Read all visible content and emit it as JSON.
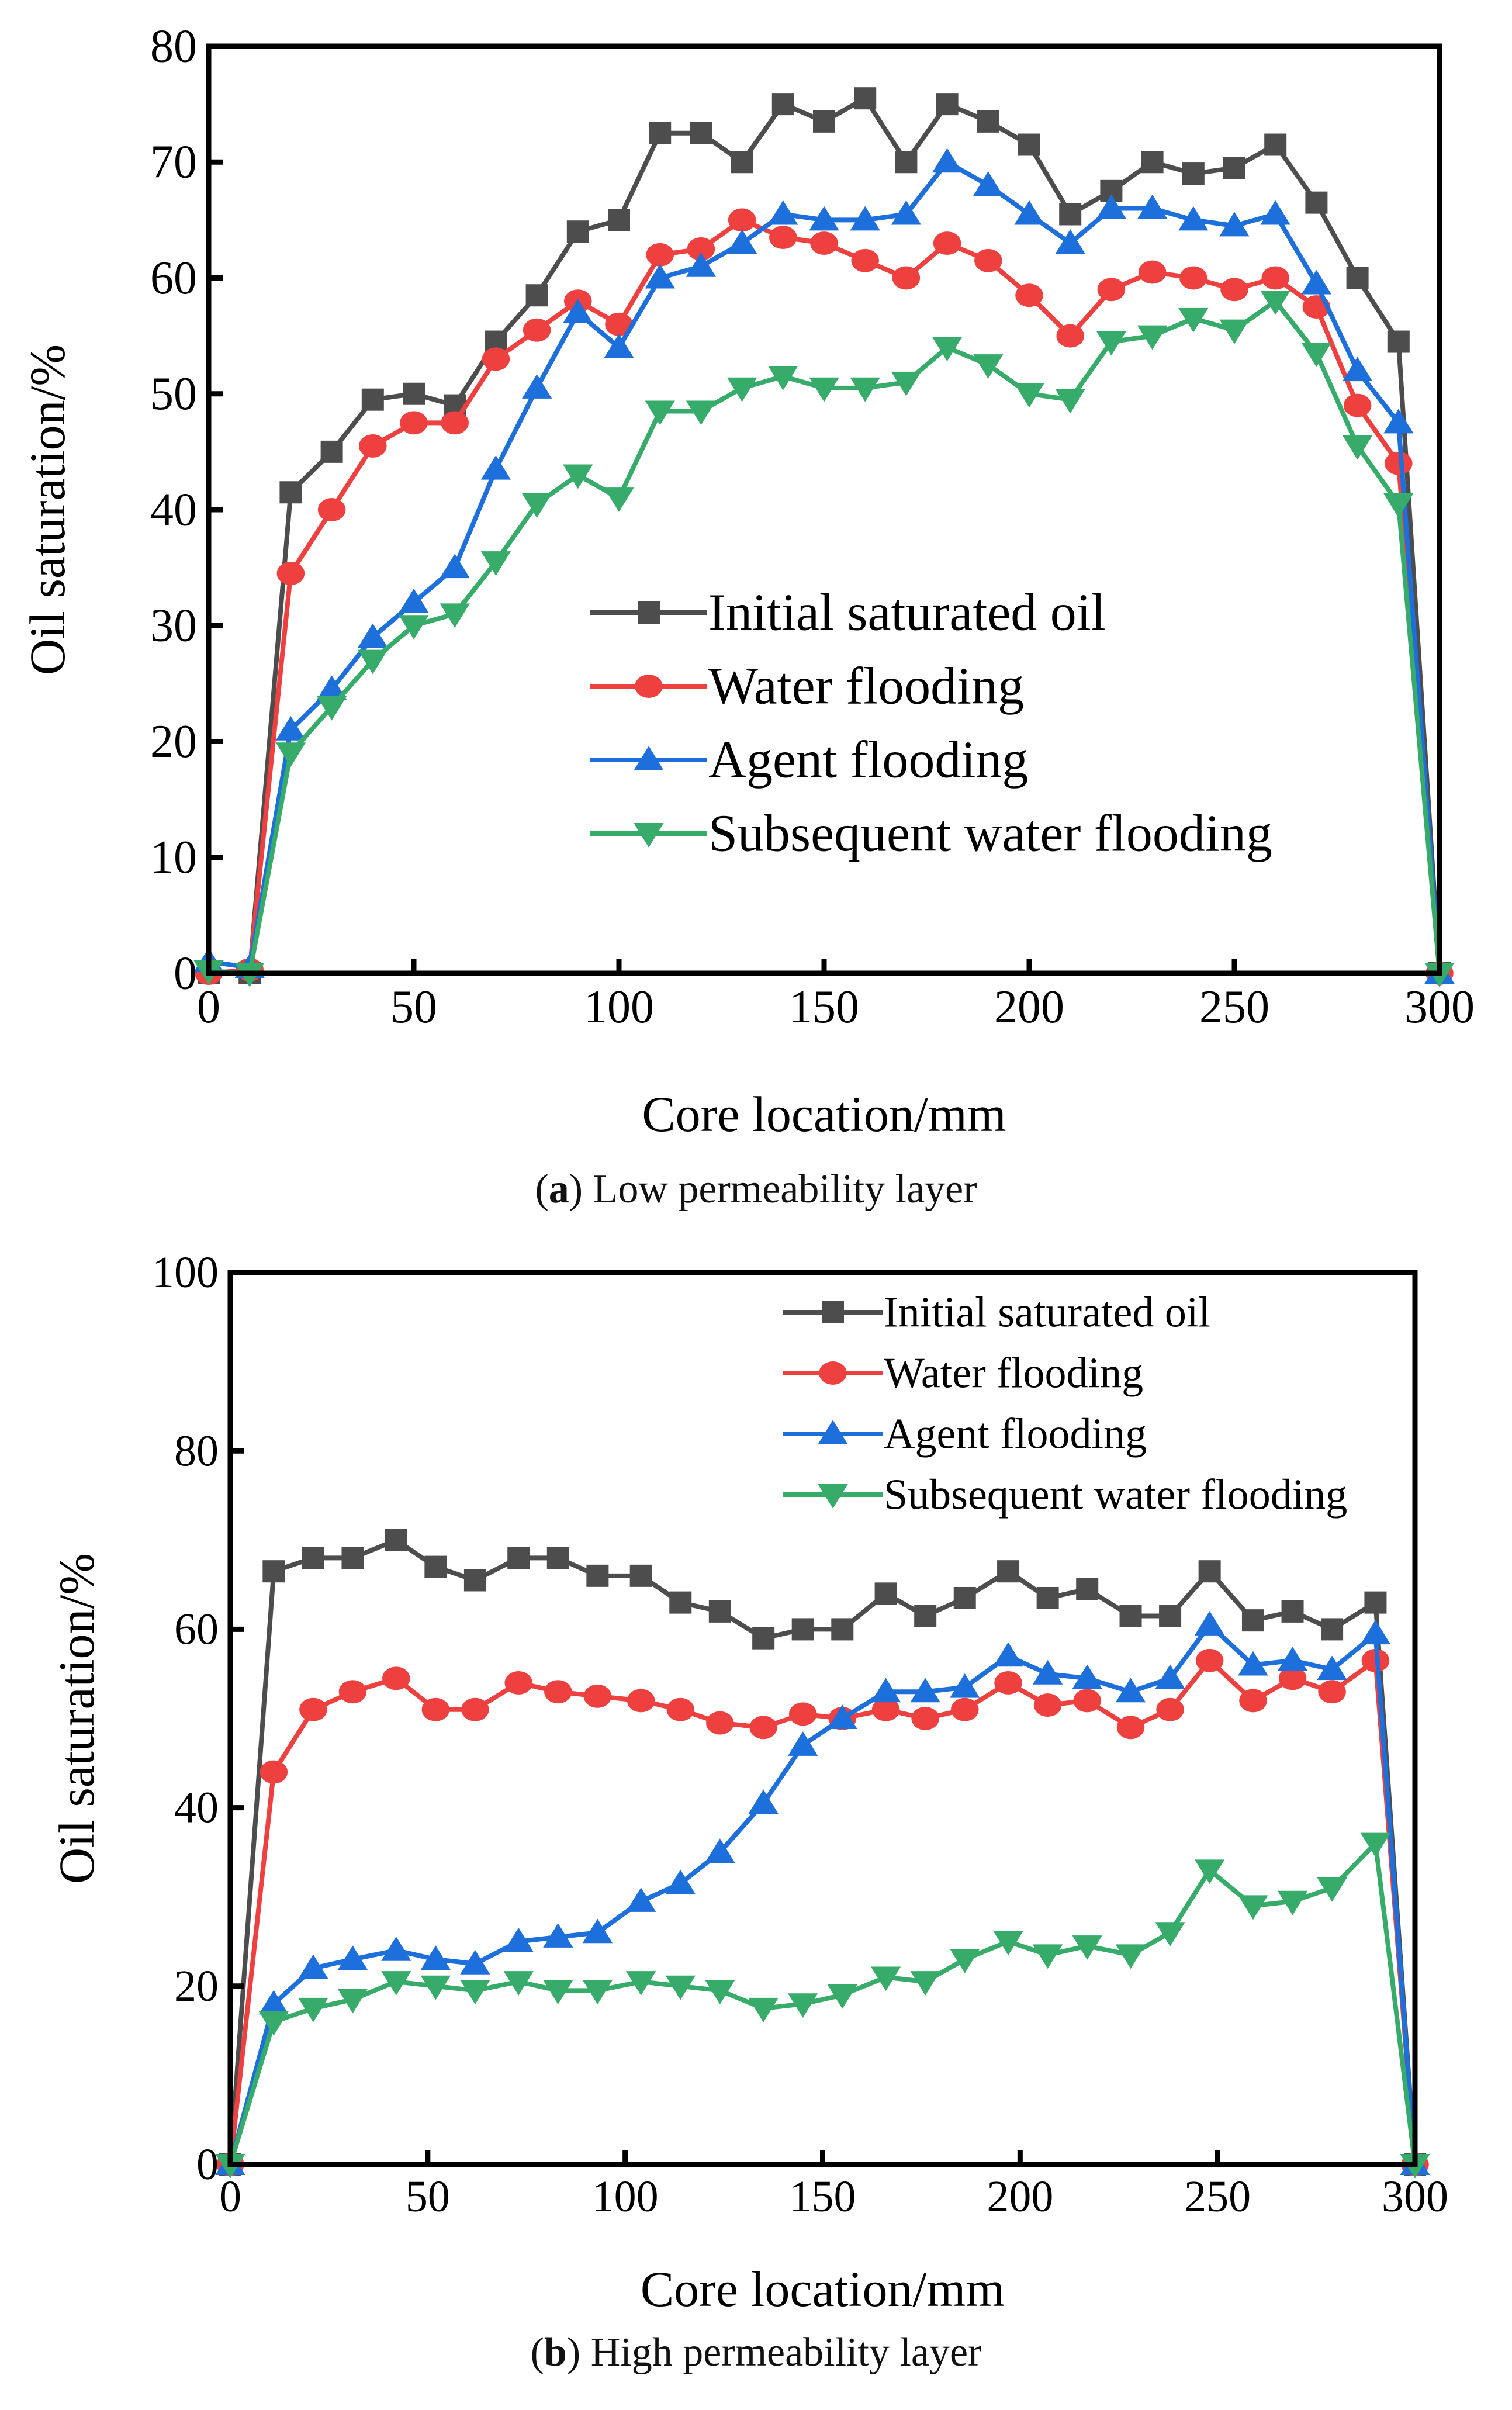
{
  "chart_data": [
    {
      "type": "line",
      "caption_label": "a",
      "caption_text": "Low permeability layer",
      "xlabel": "Core location/mm",
      "ylabel": "Oil saturation/%",
      "xlim": [
        0,
        300
      ],
      "ylim": [
        0,
        80
      ],
      "xticks": [
        0,
        50,
        100,
        150,
        200,
        250,
        300
      ],
      "yticks": [
        0,
        10,
        20,
        30,
        40,
        50,
        60,
        70,
        80
      ],
      "legend_position": "center-right",
      "x": [
        0,
        10,
        20,
        30,
        40,
        50,
        60,
        70,
        80,
        90,
        100,
        110,
        120,
        130,
        140,
        150,
        160,
        170,
        180,
        190,
        200,
        210,
        220,
        230,
        240,
        250,
        260,
        270,
        280,
        290,
        300
      ],
      "series": [
        {
          "name": "Initial saturated oil",
          "marker": "square",
          "color": "#4d4d4d",
          "values": [
            0,
            0,
            41.5,
            45,
            49.5,
            50,
            49,
            54.5,
            58.5,
            64,
            65,
            72.5,
            72.5,
            70,
            75,
            73.5,
            75.5,
            70,
            75,
            73.5,
            71.5,
            65.5,
            67.5,
            70,
            69,
            69.5,
            71.5,
            66.5,
            60,
            54.5,
            0
          ]
        },
        {
          "name": "Water flooding",
          "marker": "circle",
          "color": "#ef4040",
          "values": [
            0,
            0.3,
            34.5,
            40,
            45.5,
            47.5,
            47.5,
            53,
            55.5,
            58,
            56,
            62,
            62.5,
            65,
            63.5,
            63,
            61.5,
            60,
            63,
            61.5,
            58.5,
            55,
            59,
            60.5,
            60,
            59,
            60,
            57.5,
            49,
            44,
            0
          ]
        },
        {
          "name": "Agent flooding",
          "marker": "triangle-up",
          "color": "#1d6fdc",
          "values": [
            1,
            0.5,
            21,
            24.5,
            29,
            32,
            35,
            43.5,
            50.5,
            57,
            54,
            60,
            61,
            63,
            65.5,
            65,
            65,
            65.5,
            70,
            68,
            65.5,
            63,
            66,
            66,
            65,
            64.5,
            65.5,
            59.5,
            52,
            47.5,
            0
          ]
        },
        {
          "name": "Subsequent water flooding",
          "marker": "triangle-down",
          "color": "#37ab69",
          "values": [
            0.2,
            0,
            19,
            23,
            27,
            30,
            31,
            35.5,
            40.5,
            43,
            41,
            48.5,
            48.5,
            50.5,
            51.5,
            50.5,
            50.5,
            51,
            54,
            52.5,
            50,
            49.5,
            54.5,
            55,
            56.5,
            55.5,
            58,
            53.5,
            45.5,
            40.5,
            0
          ]
        }
      ]
    },
    {
      "type": "line",
      "caption_label": "b",
      "caption_text": "High permeability layer",
      "xlabel": "Core location/mm",
      "ylabel": "Oil saturation/%",
      "xlim": [
        0,
        300
      ],
      "ylim": [
        0,
        100
      ],
      "xticks": [
        0,
        50,
        100,
        150,
        200,
        250,
        300
      ],
      "yticks": [
        0,
        20,
        40,
        60,
        80,
        100
      ],
      "legend_position": "top-right",
      "x": [
        0,
        11,
        21,
        31,
        42,
        52,
        62,
        73,
        83,
        93,
        104,
        114,
        124,
        135,
        145,
        155,
        166,
        176,
        186,
        197,
        207,
        217,
        228,
        238,
        248,
        259,
        269,
        279,
        290,
        300
      ],
      "series": [
        {
          "name": "Initial saturated oil",
          "marker": "square",
          "color": "#4d4d4d",
          "values": [
            0,
            66.5,
            68,
            68,
            70,
            67,
            65.5,
            68,
            68,
            66,
            66,
            63,
            62,
            59,
            60,
            60,
            64,
            61.5,
            63.5,
            66.5,
            63.5,
            64.5,
            61.5,
            61.5,
            66.5,
            61,
            62,
            60,
            63,
            0
          ]
        },
        {
          "name": "Water flooding",
          "marker": "circle",
          "color": "#ef4040",
          "values": [
            0,
            44,
            51,
            53,
            54.5,
            51,
            51,
            54,
            53,
            52.5,
            52,
            51,
            49.5,
            49,
            50.5,
            50,
            51,
            50,
            51,
            54,
            51.5,
            52,
            49,
            51,
            56.5,
            52,
            54.5,
            53,
            56.5,
            0
          ]
        },
        {
          "name": "Agent flooding",
          "marker": "triangle-up",
          "color": "#1d6fdc",
          "values": [
            0,
            18,
            22,
            23,
            24,
            23,
            22.5,
            25,
            25.5,
            26,
            29.5,
            31.5,
            35,
            40.5,
            47,
            50,
            53,
            53,
            53.5,
            57,
            55,
            54.5,
            53,
            54.5,
            60.5,
            56,
            56.5,
            55.5,
            59.5,
            0
          ]
        },
        {
          "name": "Subsequent water flooding",
          "marker": "triangle-down",
          "color": "#37ab69",
          "values": [
            0,
            16,
            17.5,
            18.5,
            20.5,
            20,
            19.5,
            20.5,
            19.5,
            19.5,
            20.5,
            20,
            19.5,
            17.5,
            18,
            19,
            21,
            20.5,
            23,
            25,
            23.5,
            24.5,
            23.5,
            26,
            33,
            29,
            29.5,
            31,
            36,
            0
          ]
        }
      ]
    }
  ]
}
